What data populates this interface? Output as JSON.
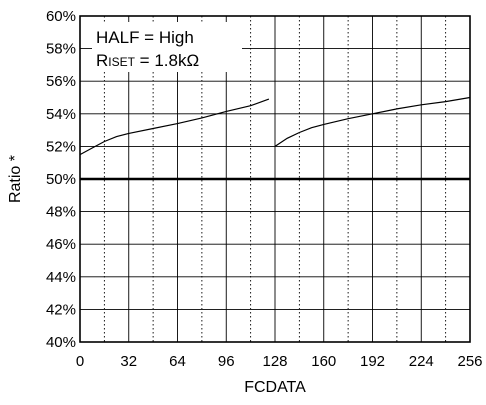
{
  "chart_data": {
    "type": "line",
    "title": "",
    "xlabel": "FCDATA",
    "ylabel": "Ratio *",
    "xlim": [
      0,
      256
    ],
    "ylim": [
      40,
      60
    ],
    "x_ticks": [
      0,
      32,
      64,
      96,
      128,
      160,
      192,
      224,
      256
    ],
    "x_tick_labels": [
      "0",
      "32",
      "64",
      "96",
      "128",
      "160",
      "192",
      "224",
      "256"
    ],
    "y_ticks": [
      40,
      42,
      44,
      46,
      48,
      50,
      52,
      54,
      56,
      58,
      60
    ],
    "y_tick_labels": [
      "40%",
      "42%",
      "44%",
      "46%",
      "48%",
      "50%",
      "52%",
      "54%",
      "56%",
      "58%",
      "60%"
    ],
    "grid": true,
    "annotation": {
      "line1": "HALF = High",
      "line2_prefix": "R",
      "line2_sub": "ISET",
      "line2_rest": " = 1.8kΩ"
    },
    "series": [
      {
        "name": "",
        "segments": [
          {
            "x": [
              0,
              8,
              16,
              24,
              32,
              48,
              64,
              80,
              96,
              112,
              124
            ],
            "y": [
              51.5,
              51.9,
              52.3,
              52.6,
              52.8,
              53.1,
              53.4,
              53.75,
              54.15,
              54.5,
              54.9
            ]
          },
          {
            "x": [
              128,
              136,
              144,
              152,
              160,
              176,
              192,
              208,
              224,
              240,
              256
            ],
            "y": [
              52.0,
              52.5,
              52.85,
              53.15,
              53.35,
              53.7,
              54.0,
              54.3,
              54.55,
              54.75,
              55.0
            ]
          }
        ]
      },
      {
        "name": "",
        "constant": 50,
        "x": [
          0,
          256
        ],
        "y": [
          50,
          50
        ]
      }
    ]
  }
}
